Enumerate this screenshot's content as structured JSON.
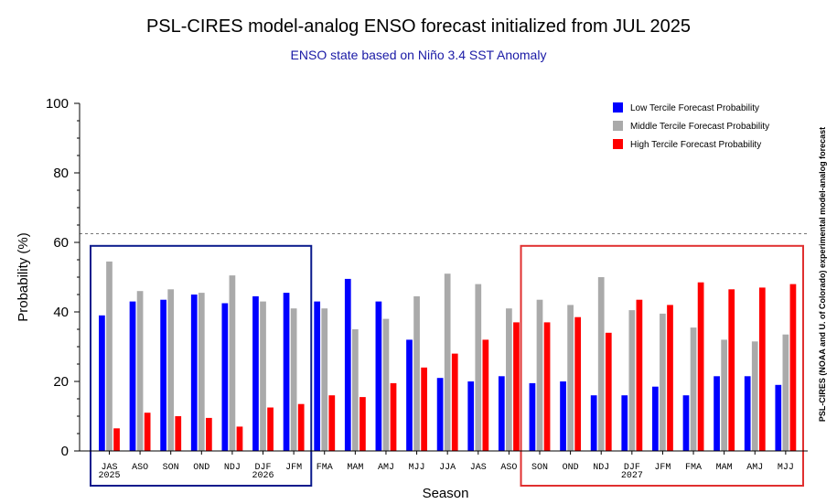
{
  "chart_data": {
    "type": "bar",
    "title": "PSL-CIRES model-analog ENSO forecast initialized from JUL 2025",
    "subtitle": "ENSO state based on Niño 3.4 SST Anomaly",
    "xlabel": "Season",
    "ylabel": "Probability (%)",
    "side_label": "PSL-CIRES (NOAA and U. of Colorado) experimental model-analog forecast",
    "ylim": [
      0,
      100
    ],
    "yticks": [
      "0",
      "20",
      "40",
      "60",
      "80",
      "100"
    ],
    "reference_line": 62.5,
    "legend_position": "top-right",
    "categories": [
      {
        "season": "JAS",
        "year": "2025"
      },
      {
        "season": "ASO",
        "year": ""
      },
      {
        "season": "SON",
        "year": ""
      },
      {
        "season": "OND",
        "year": ""
      },
      {
        "season": "NDJ",
        "year": ""
      },
      {
        "season": "DJF",
        "year": "2026"
      },
      {
        "season": "JFM",
        "year": ""
      },
      {
        "season": "FMA",
        "year": ""
      },
      {
        "season": "MAM",
        "year": ""
      },
      {
        "season": "AMJ",
        "year": ""
      },
      {
        "season": "MJJ",
        "year": ""
      },
      {
        "season": "JJA",
        "year": ""
      },
      {
        "season": "JAS",
        "year": ""
      },
      {
        "season": "ASO",
        "year": ""
      },
      {
        "season": "SON",
        "year": ""
      },
      {
        "season": "OND",
        "year": ""
      },
      {
        "season": "NDJ",
        "year": ""
      },
      {
        "season": "DJF",
        "year": "2027"
      },
      {
        "season": "JFM",
        "year": ""
      },
      {
        "season": "FMA",
        "year": ""
      },
      {
        "season": "MAM",
        "year": ""
      },
      {
        "season": "AMJ",
        "year": ""
      },
      {
        "season": "MJJ",
        "year": ""
      }
    ],
    "series": [
      {
        "name": "Low Tercile Forecast Probability",
        "color": "#0000ff",
        "values": [
          39.0,
          43.0,
          43.5,
          45.0,
          42.5,
          44.5,
          45.5,
          43.0,
          49.5,
          43.0,
          32.0,
          21.0,
          20.0,
          21.5,
          19.5,
          20.0,
          16.0,
          16.0,
          18.5,
          16.0,
          21.5,
          21.5,
          19.0
        ]
      },
      {
        "name": "Middle Tercile Forecast Probability",
        "color": "#aaaaaa",
        "values": [
          54.5,
          46.0,
          46.5,
          45.5,
          50.5,
          43.0,
          41.0,
          41.0,
          35.0,
          38.0,
          44.5,
          51.0,
          48.0,
          41.0,
          43.5,
          42.0,
          50.0,
          40.5,
          39.5,
          35.5,
          32.0,
          31.5,
          33.5
        ]
      },
      {
        "name": "High Tercile Forecast Probability",
        "color": "#ff0000",
        "values": [
          6.5,
          11.0,
          10.0,
          9.5,
          7.0,
          12.5,
          13.5,
          16.0,
          15.5,
          19.5,
          24.0,
          28.0,
          32.0,
          37.0,
          37.0,
          38.5,
          34.0,
          43.5,
          42.0,
          48.5,
          46.5,
          47.0,
          48.0
        ]
      }
    ],
    "highlight_boxes": [
      {
        "from": 0,
        "to": 6,
        "color": "#0a1a8c"
      },
      {
        "from": 14,
        "to": 22,
        "color": "#e03030"
      }
    ]
  }
}
